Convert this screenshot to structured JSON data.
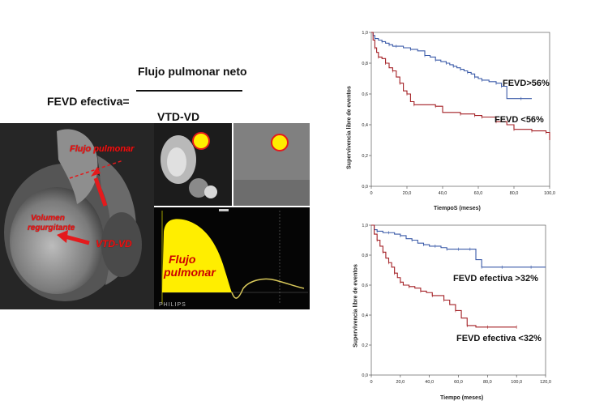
{
  "formula": {
    "lhs": "FEVD efectiva=",
    "numerator": "Flujo pulmonar neto",
    "denominator": "VTD-VD"
  },
  "mri": {
    "label_flujo_pulmonar": "Flujo pulmonar",
    "label_volumen_1": "Volumen",
    "label_volumen_2": "regurgitante",
    "label_vtd": "VTD-VD",
    "flow_label_1": "Flujo",
    "flow_label_2": "pulmonar",
    "vendor": "PHILIPS"
  },
  "colors": {
    "series_high": "#3a5aa8",
    "series_low": "#a31f24",
    "highlight": "#ffee00",
    "arrow": "#e41a1c"
  },
  "chart_data": [
    {
      "type": "line",
      "subtype": "kaplan-meier",
      "ylabel": "Supervivencia libre de eventos",
      "xlabel": "TiempoS (meses)",
      "xlim": [
        0,
        100
      ],
      "ylim": [
        0,
        1.0
      ],
      "xticks": [
        "0",
        "20,0",
        "40,0",
        "60,0",
        "80,0",
        "100,0"
      ],
      "yticks": [
        "0,0",
        "0,2",
        "0,4",
        "0,6",
        "0,8",
        "1,0"
      ],
      "series": [
        {
          "name": "FEVD>56%",
          "x": [
            0,
            1,
            2,
            4,
            6,
            8,
            10,
            12,
            14,
            18,
            22,
            26,
            30,
            33,
            36,
            39,
            42,
            44,
            46,
            48,
            50,
            52,
            54,
            56,
            58,
            60,
            62,
            66,
            70,
            72,
            73,
            76,
            84,
            90
          ],
          "y": [
            1.0,
            0.98,
            0.96,
            0.95,
            0.94,
            0.93,
            0.92,
            0.91,
            0.91,
            0.9,
            0.89,
            0.88,
            0.85,
            0.84,
            0.82,
            0.81,
            0.8,
            0.79,
            0.78,
            0.77,
            0.76,
            0.75,
            0.74,
            0.73,
            0.71,
            0.7,
            0.69,
            0.68,
            0.67,
            0.67,
            0.65,
            0.57,
            0.57,
            0.57
          ]
        },
        {
          "name": "FEVD <56%",
          "x": [
            0,
            1,
            2,
            3,
            4,
            6,
            8,
            10,
            12,
            14,
            16,
            18,
            20,
            22,
            24,
            30,
            36,
            40,
            50,
            56,
            58,
            60,
            62,
            66,
            70,
            76,
            80,
            86,
            90,
            96,
            98,
            100
          ],
          "y": [
            1.0,
            0.95,
            0.9,
            0.87,
            0.84,
            0.83,
            0.8,
            0.77,
            0.75,
            0.71,
            0.67,
            0.62,
            0.6,
            0.55,
            0.53,
            0.53,
            0.52,
            0.48,
            0.47,
            0.47,
            0.46,
            0.46,
            0.45,
            0.45,
            0.42,
            0.4,
            0.37,
            0.37,
            0.36,
            0.36,
            0.35,
            0.3
          ]
        }
      ]
    },
    {
      "type": "line",
      "subtype": "kaplan-meier",
      "ylabel": "Supervivencia libre de eventos",
      "xlabel": "Tiempo (meses)",
      "xlim": [
        0,
        120
      ],
      "ylim": [
        0,
        1.0
      ],
      "xticks": [
        "0",
        "20,0",
        "40,0",
        "60,0",
        "80,0",
        "100,0",
        "120,0"
      ],
      "yticks": [
        "0,0",
        "0,2",
        "0,4",
        "0,6",
        "0,8",
        "1,0"
      ],
      "series": [
        {
          "name": "FEVD efectiva >32%",
          "x": [
            0,
            2,
            4,
            8,
            12,
            16,
            20,
            24,
            28,
            32,
            36,
            40,
            44,
            48,
            52,
            56,
            60,
            64,
            68,
            72,
            76,
            80,
            90,
            100,
            110,
            120
          ],
          "y": [
            1.0,
            0.97,
            0.96,
            0.95,
            0.95,
            0.94,
            0.93,
            0.91,
            0.9,
            0.88,
            0.87,
            0.86,
            0.86,
            0.85,
            0.84,
            0.84,
            0.84,
            0.84,
            0.84,
            0.77,
            0.72,
            0.72,
            0.72,
            0.72,
            0.72,
            0.72
          ]
        },
        {
          "name": "FEVD efectiva <32%",
          "x": [
            0,
            2,
            4,
            6,
            8,
            10,
            12,
            14,
            16,
            18,
            20,
            22,
            26,
            30,
            34,
            38,
            42,
            46,
            50,
            54,
            58,
            62,
            66,
            72,
            80,
            90,
            100
          ],
          "y": [
            1.0,
            0.94,
            0.9,
            0.86,
            0.82,
            0.78,
            0.75,
            0.72,
            0.68,
            0.65,
            0.62,
            0.6,
            0.59,
            0.58,
            0.56,
            0.55,
            0.53,
            0.53,
            0.5,
            0.47,
            0.43,
            0.38,
            0.33,
            0.32,
            0.32,
            0.32,
            0.32
          ]
        }
      ]
    }
  ]
}
